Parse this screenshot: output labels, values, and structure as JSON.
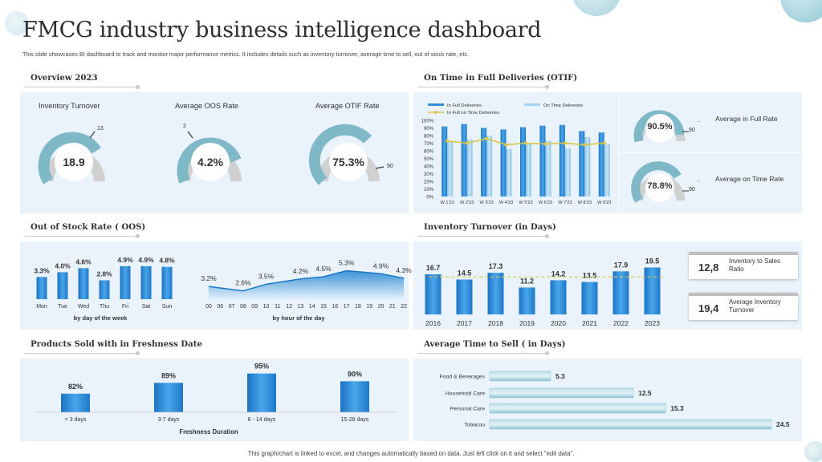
{
  "header": {
    "title": "FMCG industry business intelligence dashboard",
    "subtitle": "This slide showcases BI dashboard to track and monitor major performance metrics. It includes details such as inventory turnover, average time to sell, out of stock rate, etc.",
    "footnote": "This graph/chart is linked to excel, and changes automatically based on data. Just left click on it and select \"edit data\"."
  },
  "sections": {
    "overview": "Overview 2023",
    "otif": "On Time in Full Deliveries (OTIF)",
    "oos": "Out of Stock Rate ( OOS)",
    "inv_days": "Inventory Turnover (in Days)",
    "fresh": "Products Sold with in Freshness Date",
    "time_sell": "Average Time to Sell ( in Days)"
  },
  "overview": {
    "inventory": {
      "label": "Inventory Turnover",
      "value": "18.9",
      "target": "13"
    },
    "oos": {
      "label": "Average OOS Rate",
      "value": "4.2%",
      "target": "2"
    },
    "otif": {
      "label": "Average OTIF Rate",
      "value": "75.3%",
      "target": "90"
    }
  },
  "otif_gauges": {
    "in_full": {
      "value": "90.5%",
      "target": "90",
      "label": "Average in Full Rate"
    },
    "on_time": {
      "value": "78.8%",
      "target": "90",
      "label": "Average on Time Rate"
    }
  },
  "inventory_cards": [
    {
      "value": "12,8",
      "label": "Inventory to Sales Ratio"
    },
    {
      "value": "19,4",
      "label": "Average Inventory Turnover"
    }
  ],
  "colors": {
    "bar_blue": "#2f8fd8",
    "bar_light": "#a6d4f2",
    "line_yellow": "#d9c64a",
    "gauge_teal": "#7fb9c8",
    "gauge_grey": "#d0d0d0",
    "panel": "#eaf3fb"
  },
  "chart_data": [
    {
      "id": "otif",
      "type": "bar",
      "categories": [
        "W 1'23",
        "W 2'23",
        "W 3'23",
        "W 4'23",
        "W 5'23",
        "W 6'23",
        "W 7'23",
        "W 8'23",
        "W 9'23"
      ],
      "series": [
        {
          "name": "In Full Deliveries",
          "values": [
            92,
            95,
            90,
            88,
            91,
            93,
            94,
            86,
            84
          ]
        },
        {
          "name": "On Time Deliveries",
          "values": [
            72,
            75,
            80,
            62,
            69,
            73,
            63,
            78,
            69
          ]
        },
        {
          "name": "In Full on Time Deliveries",
          "values": [
            73,
            70,
            76,
            68,
            70,
            69,
            70,
            68,
            70
          ]
        }
      ],
      "yticks": [
        "100%",
        "90%",
        "80%",
        "70%",
        "60%",
        "50%",
        "40%",
        "30%",
        "20%",
        "10%",
        "0%"
      ],
      "ylim": [
        0,
        100
      ]
    },
    {
      "id": "oos_week",
      "type": "bar",
      "categories": [
        "Mon",
        "Tue",
        "Wed",
        "Thu",
        "Fri",
        "Sat",
        "Sun"
      ],
      "values": [
        3.3,
        4.0,
        4.6,
        2.8,
        4.9,
        4.9,
        4.8
      ],
      "labels": [
        "3.3%",
        "4.0%",
        "4.6%",
        "2.8%",
        "4.9%",
        "4.9%",
        "4.8%"
      ],
      "xlabel": "by day of the week"
    },
    {
      "id": "oos_hour",
      "type": "area",
      "x": [
        "00",
        "06",
        "07",
        "08",
        "09",
        "10",
        "11",
        "12",
        "13",
        "14",
        "15",
        "16",
        "17",
        "18",
        "19",
        "20",
        "21",
        "22"
      ],
      "points": [
        {
          "x": "00",
          "y": 3.2,
          "label": "3.2%"
        },
        {
          "x": "08",
          "y": 2.6,
          "label": "2.6%"
        },
        {
          "x": "10",
          "y": 3.5,
          "label": "3.5%"
        },
        {
          "x": "13",
          "y": 4.2,
          "label": "4.2%"
        },
        {
          "x": "15",
          "y": 4.5,
          "label": "4.5%"
        },
        {
          "x": "17",
          "y": 5.3,
          "label": "5.3%"
        },
        {
          "x": "20",
          "y": 4.9,
          "label": "4.9%"
        },
        {
          "x": "22",
          "y": 4.3,
          "label": "4.3%"
        }
      ],
      "xlabel": "by hour of the day"
    },
    {
      "id": "inventory_days",
      "type": "bar",
      "categories": [
        "2016",
        "2017",
        "2018",
        "2019",
        "2020",
        "2021",
        "2022",
        "2023"
      ],
      "values": [
        16.7,
        14.5,
        17.3,
        11.2,
        14.2,
        13.5,
        17.9,
        19.5
      ],
      "labels": [
        "16.7",
        "14.5",
        "17.3",
        "11.2",
        "14.2",
        "13.5",
        "17.9",
        "19.5"
      ],
      "avg_line": 15.6
    },
    {
      "id": "freshness",
      "type": "bar",
      "categories": [
        "< 3 days",
        "3-7 days",
        "8 - 14 days",
        "15-28 days"
      ],
      "values": [
        82,
        89,
        95,
        90
      ],
      "labels": [
        "82%",
        "89%",
        "95%",
        "90%"
      ],
      "xlabel": "Freshness Duration"
    },
    {
      "id": "time_to_sell",
      "type": "bar",
      "orientation": "horizontal",
      "categories": [
        "Food & Beverages",
        "Household Care",
        "Personal Care",
        "Tobacoo"
      ],
      "values": [
        5.3,
        12.5,
        15.3,
        24.5
      ],
      "labels": [
        "5.3",
        "12.5",
        "15.3",
        "24.5"
      ]
    }
  ]
}
